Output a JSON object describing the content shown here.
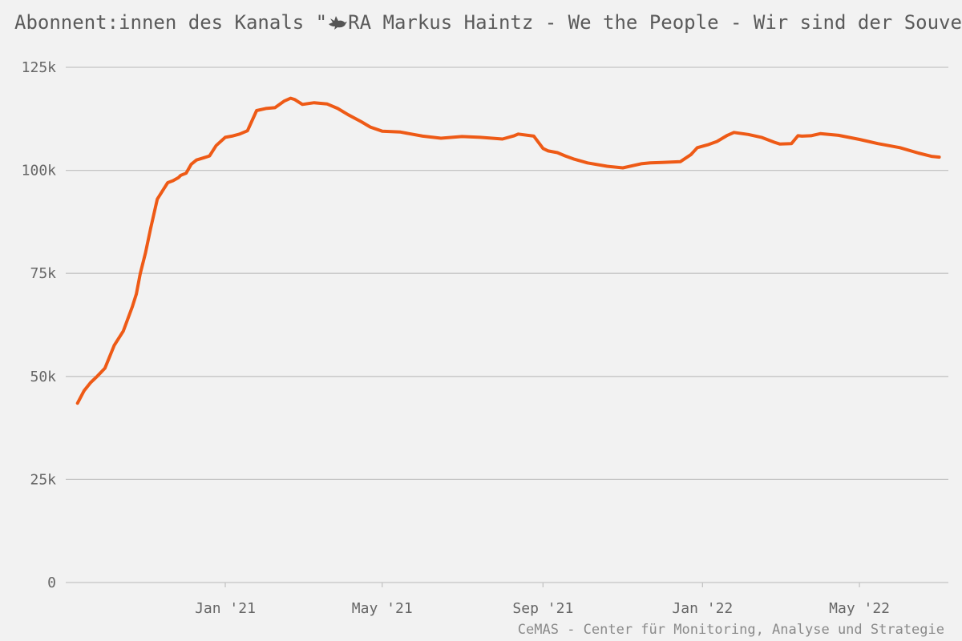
{
  "title_prefix": "Abonnent:innen des Kanals \"",
  "title_rest": "RA Markus Haintz - We the People - Wir sind der Souverän\"",
  "credit": "CeMAS - Center für Monitoring, Analyse und Strategie",
  "colors": {
    "line": "#ee5a16",
    "grid": "#c4c4c4",
    "background": "#f2f2f2",
    "dove": "#555555"
  },
  "chart_data": {
    "type": "line",
    "title": "Abonnent:innen des Kanals \"RA Markus Haintz - We the People - Wir sind der Souverän\"",
    "xlabel": "",
    "ylabel": "",
    "ylim": [
      0,
      125000
    ],
    "xlim": [
      "2020-09-01",
      "2022-07-08"
    ],
    "yticks": [
      0,
      25000,
      50000,
      75000,
      100000,
      125000
    ],
    "ytick_labels": [
      "0",
      "25k",
      "50k",
      "75k",
      "100k",
      "125k"
    ],
    "xticks": [
      "2021-01-01",
      "2021-05-01",
      "2021-09-01",
      "2022-01-01",
      "2022-05-01"
    ],
    "xtick_labels": [
      "Jan '21",
      "May '21",
      "Sep '21",
      "Jan '22",
      "May '22"
    ],
    "grid": "horizontal",
    "legend": "none",
    "series": [
      {
        "x": [
          "2020-09-10",
          "2020-09-15",
          "2020-09-20",
          "2020-09-25",
          "2020-10-01",
          "2020-10-08",
          "2020-10-15",
          "2020-10-22",
          "2020-10-25",
          "2020-10-28",
          "2020-11-01",
          "2020-11-05",
          "2020-11-10",
          "2020-11-15",
          "2020-11-18",
          "2020-11-22",
          "2020-11-26",
          "2020-11-28",
          "2020-12-02",
          "2020-12-06",
          "2020-12-10",
          "2020-12-15",
          "2020-12-20",
          "2020-12-25",
          "2021-01-01",
          "2021-01-06",
          "2021-01-12",
          "2021-01-18",
          "2021-01-25",
          "2021-02-01",
          "2021-02-08",
          "2021-02-15",
          "2021-02-20",
          "2021-02-23",
          "2021-03-01",
          "2021-03-10",
          "2021-03-20",
          "2021-03-28",
          "2021-04-05",
          "2021-04-15",
          "2021-04-22",
          "2021-05-01",
          "2021-05-15",
          "2021-06-01",
          "2021-06-15",
          "2021-07-01",
          "2021-07-15",
          "2021-08-01",
          "2021-08-10",
          "2021-08-13",
          "2021-08-25",
          "2021-09-01",
          "2021-09-05",
          "2021-09-12",
          "2021-09-18",
          "2021-09-25",
          "2021-10-05",
          "2021-10-20",
          "2021-11-01",
          "2021-11-15",
          "2021-11-22",
          "2021-12-01",
          "2021-12-15",
          "2021-12-23",
          "2021-12-28",
          "2022-01-05",
          "2022-01-12",
          "2022-01-20",
          "2022-01-25",
          "2022-02-05",
          "2022-02-15",
          "2022-02-25",
          "2022-03-01",
          "2022-03-10",
          "2022-03-15",
          "2022-03-18",
          "2022-03-25",
          "2022-04-01",
          "2022-04-15",
          "2022-05-01",
          "2022-05-15",
          "2022-06-01",
          "2022-06-15",
          "2022-06-25",
          "2022-07-01"
        ],
        "values": [
          43500,
          46500,
          48500,
          50000,
          52000,
          57500,
          61000,
          67000,
          70000,
          75000,
          80000,
          86000,
          93000,
          95500,
          97000,
          97500,
          98200,
          98800,
          99300,
          101500,
          102500,
          103000,
          103500,
          106000,
          108000,
          108300,
          108800,
          109600,
          114500,
          115000,
          115200,
          116800,
          117500,
          117200,
          116000,
          116400,
          116100,
          115000,
          113500,
          111800,
          110500,
          109500,
          109300,
          108300,
          107800,
          108200,
          108000,
          107600,
          108400,
          108800,
          108300,
          105300,
          104700,
          104300,
          103500,
          102700,
          101800,
          101000,
          100600,
          101600,
          101800,
          101900,
          102100,
          103800,
          105500,
          106200,
          107000,
          108500,
          109200,
          108700,
          108000,
          106800,
          106400,
          106500,
          108400,
          108300,
          108400,
          108900,
          108500,
          107500,
          106500,
          105500,
          104200,
          103400,
          103200
        ]
      }
    ]
  }
}
